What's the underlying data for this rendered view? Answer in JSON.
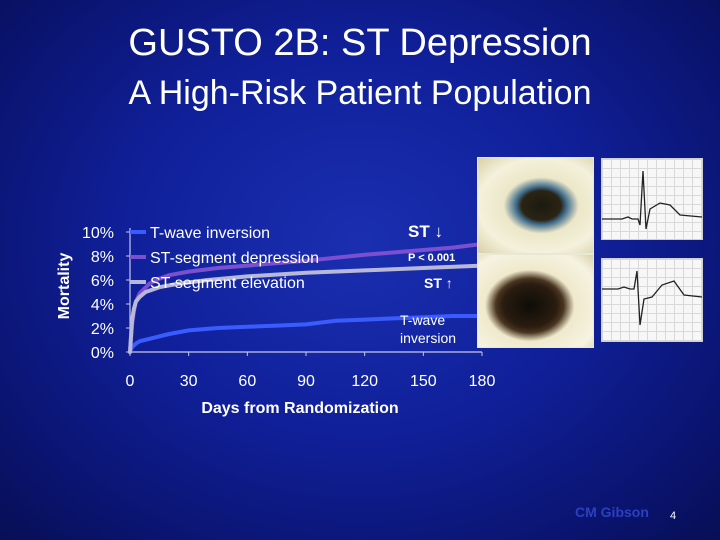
{
  "slide": {
    "title": "GUSTO 2B:  ST Depression",
    "subtitle": "A High-Risk Patient Population",
    "page_number": "4",
    "watermark": "CM Gibson"
  },
  "annotations": {
    "st_down": "ST ↓",
    "p_value": "P < 0.001",
    "st_up": "ST ↑",
    "t_wave": "T-wave inversion"
  },
  "colors": {
    "t_wave": "#3a5cff",
    "st_depression": "#7a4fd0",
    "st_elevation": "#b8b8d8",
    "text": "#ffffff"
  },
  "chart_data": {
    "type": "line",
    "xlabel": "Days from Randomization",
    "ylabel": "Mortality",
    "x_ticks": [
      0,
      30,
      60,
      90,
      120,
      150,
      180
    ],
    "y_ticks": [
      "0%",
      "2%",
      "4%",
      "6%",
      "8%",
      "10%"
    ],
    "xlim": [
      0,
      180
    ],
    "ylim": [
      0,
      10
    ],
    "legend_position": "top-left",
    "series": [
      {
        "name": "T-wave inversion",
        "color": "#3a5cff",
        "points": [
          [
            0,
            0
          ],
          [
            1,
            0.4
          ],
          [
            3,
            0.7
          ],
          [
            5,
            0.9
          ],
          [
            10,
            1.1
          ],
          [
            20,
            1.5
          ],
          [
            30,
            1.8
          ],
          [
            45,
            2.0
          ],
          [
            60,
            2.1
          ],
          [
            75,
            2.2
          ],
          [
            90,
            2.3
          ],
          [
            105,
            2.6
          ],
          [
            120,
            2.7
          ],
          [
            135,
            2.8
          ],
          [
            150,
            2.9
          ],
          [
            165,
            3.0
          ],
          [
            180,
            3.0
          ]
        ]
      },
      {
        "name": "ST-segment depression",
        "color": "#7a4fd0",
        "points": [
          [
            0,
            0
          ],
          [
            1,
            2.2
          ],
          [
            2,
            3.4
          ],
          [
            3,
            4.2
          ],
          [
            5,
            4.9
          ],
          [
            10,
            5.7
          ],
          [
            15,
            6.1
          ],
          [
            20,
            6.4
          ],
          [
            30,
            6.7
          ],
          [
            45,
            7.0
          ],
          [
            60,
            7.2
          ],
          [
            90,
            7.6
          ],
          [
            120,
            8.1
          ],
          [
            150,
            8.5
          ],
          [
            165,
            8.7
          ],
          [
            180,
            9.0
          ]
        ]
      },
      {
        "name": "ST-segment elevation",
        "color": "#b8b8d8",
        "points": [
          [
            0,
            0
          ],
          [
            1,
            2.6
          ],
          [
            2,
            3.6
          ],
          [
            3,
            4.2
          ],
          [
            5,
            4.6
          ],
          [
            8,
            5.0
          ],
          [
            15,
            5.4
          ],
          [
            25,
            5.7
          ],
          [
            40,
            6.0
          ],
          [
            60,
            6.3
          ],
          [
            90,
            6.6
          ],
          [
            120,
            6.8
          ],
          [
            150,
            7.0
          ],
          [
            180,
            7.2
          ]
        ]
      }
    ]
  }
}
